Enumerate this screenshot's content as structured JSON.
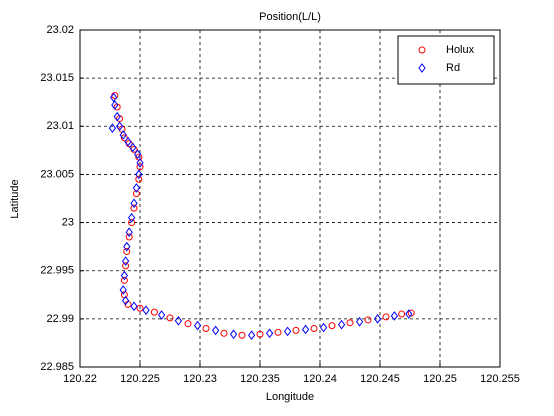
{
  "chart_data": {
    "type": "scatter",
    "title": "Position(L/L)",
    "x_label": "Longitude",
    "y_label": "Latitude",
    "xlim": [
      120.22,
      120.255
    ],
    "ylim": [
      22.985,
      23.02
    ],
    "xticks": [
      120.22,
      120.225,
      120.23,
      120.235,
      120.24,
      120.245,
      120.25,
      120.255
    ],
    "yticks": [
      22.985,
      22.99,
      22.995,
      23,
      23.005,
      23.01,
      23.015,
      23.02
    ],
    "grid": true,
    "legend": "upper right",
    "series": [
      {
        "name": "Holux",
        "color": "#ff0000",
        "marker": "o",
        "x": [
          120.2229,
          120.2231,
          120.2233,
          120.2235,
          120.2237,
          120.2241,
          120.2245,
          120.2249,
          120.225,
          120.2249,
          120.2247,
          120.2245,
          120.2243,
          120.2241,
          120.2239,
          120.2238,
          120.2237,
          120.2237,
          120.224,
          120.225,
          120.2262,
          120.2275,
          120.229,
          120.2305,
          120.232,
          120.2335,
          120.235,
          120.2365,
          120.238,
          120.2395,
          120.241,
          120.2425,
          120.244,
          120.2455,
          120.2468,
          120.2476
        ],
        "y": [
          23.0132,
          23.012,
          23.0108,
          23.0097,
          23.0088,
          23.0082,
          23.0076,
          23.0068,
          23.0058,
          23.0045,
          23.003,
          23.0015,
          23.0,
          22.9985,
          22.997,
          22.9955,
          22.994,
          22.9925,
          22.9915,
          22.9911,
          22.9907,
          22.9901,
          22.9895,
          22.989,
          22.9885,
          22.9883,
          22.9884,
          22.9886,
          22.9888,
          22.989,
          22.9893,
          22.9896,
          22.9899,
          22.9902,
          22.9905,
          22.9906
        ]
      },
      {
        "name": "Rd",
        "color": "#0000ff",
        "marker": "d",
        "x": [
          120.2228,
          120.2227,
          120.2229,
          120.2231,
          120.2233,
          120.2236,
          120.224,
          120.2244,
          120.2248,
          120.225,
          120.2249,
          120.2247,
          120.2245,
          120.2243,
          120.2241,
          120.2239,
          120.2238,
          120.2237,
          120.2236,
          120.2238,
          120.2245,
          120.2255,
          120.2268,
          120.2282,
          120.2298,
          120.2313,
          120.2328,
          120.2343,
          120.2358,
          120.2373,
          120.2388,
          120.2403,
          120.2418,
          120.2433,
          120.2448,
          120.2462,
          120.2474
        ],
        "y": [
          23.013,
          23.0098,
          23.0122,
          23.011,
          23.01,
          23.0091,
          23.0084,
          23.0078,
          23.0071,
          23.0062,
          23.005,
          23.0036,
          23.002,
          23.0005,
          22.999,
          22.9975,
          22.996,
          22.9945,
          22.993,
          22.9919,
          22.9913,
          22.9909,
          22.9904,
          22.9898,
          22.9893,
          22.9888,
          22.9884,
          22.9883,
          22.9885,
          22.9887,
          22.9889,
          22.9891,
          22.9894,
          22.9897,
          22.99,
          22.9903,
          22.9905
        ]
      }
    ]
  }
}
